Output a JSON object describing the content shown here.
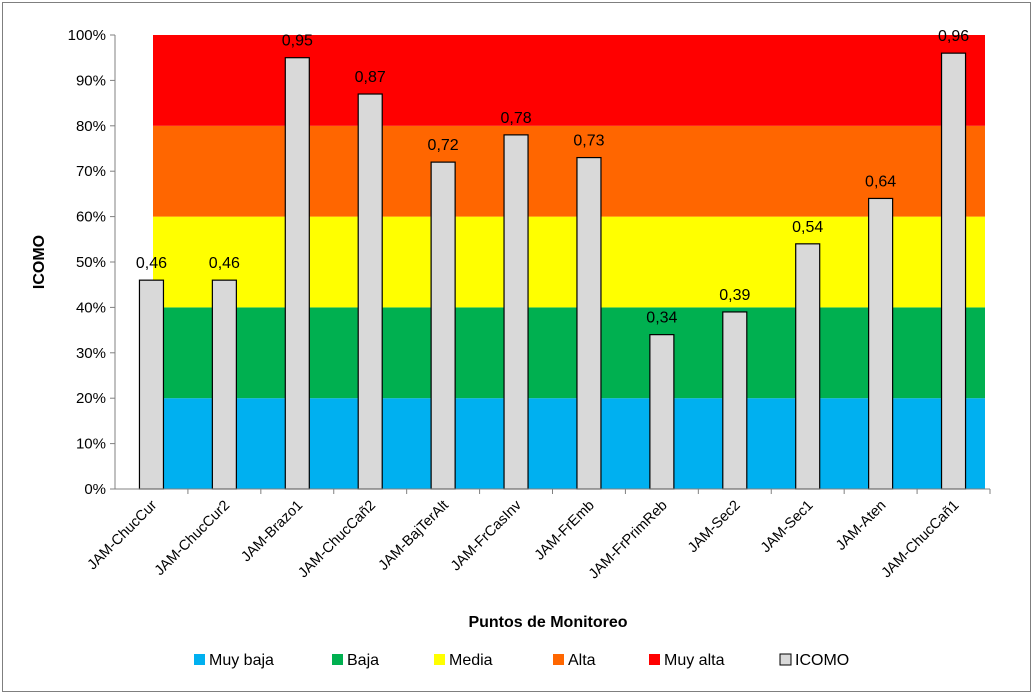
{
  "chart_data": {
    "type": "bar",
    "ylabel": "ICOMO",
    "xlabel": "Puntos de Monitoreo",
    "ylim": [
      0,
      100
    ],
    "yticks": [
      "0%",
      "10%",
      "20%",
      "30%",
      "40%",
      "50%",
      "60%",
      "70%",
      "80%",
      "90%",
      "100%"
    ],
    "grid": false,
    "legend_position": "bottom",
    "categories": [
      "JAM-ChucCur",
      "JAM-ChucCur2",
      "JAM-Brazo1",
      "JAM-ChucCañ2",
      "JAM-BajTerAlt",
      "JAM-FrCasInv",
      "JAM-FrEmb",
      "JAM-FrPrimReb",
      "JAM-Sec2",
      "JAM-Sec1",
      "JAM-Aten",
      "JAM-ChucCañ1"
    ],
    "series": [
      {
        "name": "ICOMO",
        "color": "#d9d9d9",
        "values": [
          0.46,
          0.46,
          0.95,
          0.87,
          0.72,
          0.78,
          0.73,
          0.34,
          0.39,
          0.54,
          0.64,
          0.96
        ],
        "labels": [
          "0,46",
          "0,46",
          "0,95",
          "0,87",
          "0,72",
          "0,78",
          "0,73",
          "0,34",
          "0,39",
          "0,54",
          "0,64",
          "0,96"
        ]
      }
    ],
    "bands": [
      {
        "name": "Muy baja",
        "from": 0,
        "to": 20,
        "color": "#00b0f0"
      },
      {
        "name": "Baja",
        "from": 20,
        "to": 40,
        "color": "#00b050"
      },
      {
        "name": "Media",
        "from": 40,
        "to": 60,
        "color": "#ffff00"
      },
      {
        "name": "Alta",
        "from": 60,
        "to": 80,
        "color": "#ff6600"
      },
      {
        "name": "Muy alta",
        "from": 80,
        "to": 100,
        "color": "#ff0000"
      }
    ],
    "legend": [
      "Muy baja",
      "Baja",
      "Media",
      "Alta",
      "Muy alta",
      "ICOMO"
    ]
  }
}
